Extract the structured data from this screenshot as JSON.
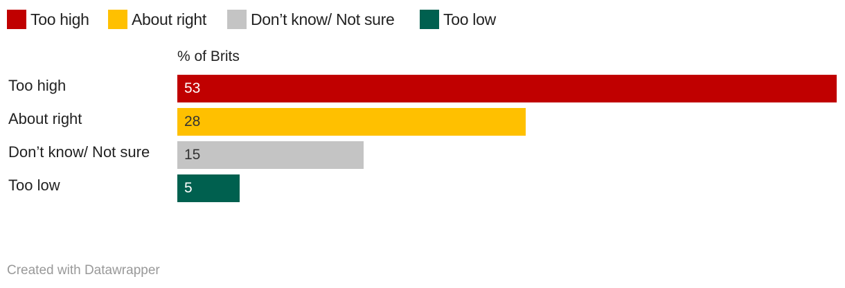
{
  "chart_data": {
    "type": "bar",
    "orientation": "horizontal",
    "column_title": "% of Brits",
    "categories": [
      "Too high",
      "About right",
      "Don’t know/ Not sure",
      "Too low"
    ],
    "values": [
      53,
      28,
      15,
      5
    ],
    "colors": [
      "#c00000",
      "#ffc000",
      "#c4c4c4",
      "#00604f"
    ],
    "value_label_colors": [
      "#ffffff",
      "#333333",
      "#333333",
      "#ffffff"
    ],
    "legend": {
      "position": "top-left",
      "entries": [
        "Too high",
        "About right",
        "Don’t know/ Not sure",
        "Too low"
      ]
    },
    "xlim": [
      0,
      53
    ],
    "grid": false
  },
  "footer": "Created with Datawrapper"
}
